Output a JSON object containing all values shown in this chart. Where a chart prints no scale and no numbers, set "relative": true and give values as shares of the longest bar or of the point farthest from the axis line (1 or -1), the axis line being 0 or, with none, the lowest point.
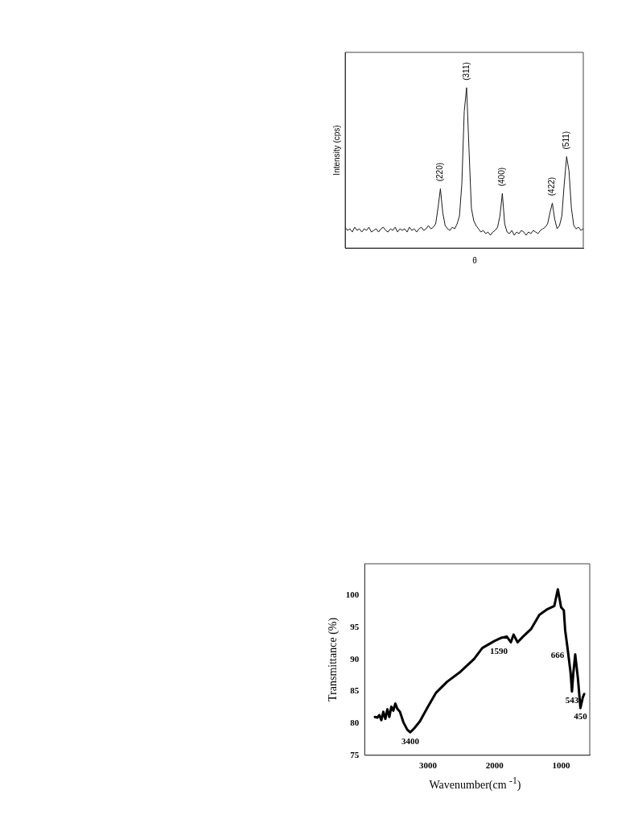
{
  "chart_data": [
    {
      "type": "line",
      "xlabel": "θ",
      "ylabel": "Intensity (cps)",
      "relative": true,
      "color": "#1a1a1a",
      "categories": [
        null,
        null,
        null,
        null,
        null,
        null,
        null,
        null,
        null,
        null,
        null,
        null,
        null,
        null,
        null,
        null,
        null,
        null,
        null,
        null,
        null,
        null,
        null,
        null,
        null,
        null,
        null,
        null,
        null,
        null,
        null,
        null,
        null,
        null,
        null,
        null,
        null,
        null,
        null,
        null,
        null,
        null,
        null,
        null,
        null,
        null,
        null,
        null,
        null,
        null,
        null,
        null,
        null,
        null,
        null,
        null,
        null,
        null,
        null,
        null,
        null,
        null,
        null,
        null,
        null,
        null,
        null,
        null,
        null,
        null,
        null,
        null,
        null,
        null,
        null,
        null,
        null,
        null,
        null,
        null,
        null,
        null,
        null,
        null,
        null,
        null,
        null,
        null,
        null,
        null,
        null,
        null,
        null,
        null,
        null,
        null,
        null,
        null,
        null,
        null,
        null
      ],
      "values": [
        0.13,
        0.11,
        0.12,
        0.1,
        0.13,
        0.11,
        0.12,
        0.1,
        0.12,
        0.11,
        0.13,
        0.1,
        0.11,
        0.12,
        0.1,
        0.12,
        0.13,
        0.11,
        0.1,
        0.12,
        0.11,
        0.13,
        0.1,
        0.12,
        0.11,
        0.12,
        0.1,
        0.13,
        0.11,
        0.12,
        0.1,
        0.12,
        0.13,
        0.11,
        0.12,
        0.14,
        0.12,
        0.13,
        0.15,
        0.25,
        0.37,
        0.22,
        0.14,
        0.12,
        0.11,
        0.13,
        0.12,
        0.15,
        0.2,
        0.4,
        0.85,
        1.0,
        0.62,
        0.25,
        0.17,
        0.14,
        0.12,
        0.1,
        0.11,
        0.09,
        0.1,
        0.08,
        0.1,
        0.11,
        0.13,
        0.2,
        0.34,
        0.15,
        0.1,
        0.09,
        0.11,
        0.08,
        0.1,
        0.09,
        0.11,
        0.1,
        0.08,
        0.1,
        0.09,
        0.11,
        0.1,
        0.09,
        0.11,
        0.12,
        0.13,
        0.15,
        0.22,
        0.28,
        0.18,
        0.12,
        0.14,
        0.2,
        0.4,
        0.57,
        0.48,
        0.25,
        0.14,
        0.12,
        0.13,
        0.11,
        0.12
      ],
      "annotations": [
        {
          "text": "(220)",
          "y": 0.37
        },
        {
          "text": "(311)",
          "y": 1.0
        },
        {
          "text": "(400)",
          "y": 0.34
        },
        {
          "text": "(422)",
          "y": 0.28
        },
        {
          "text": "(511)",
          "y": 0.57
        }
      ]
    },
    {
      "type": "line",
      "xlabel": "Wavenumber(cm $^{-1}$)",
      "ylabel": "Transmittance (%)",
      "color": "#000000",
      "xlim": [
        3950,
        570
      ],
      "xticks": [
        3000,
        2000,
        1000
      ],
      "ylim": [
        75,
        105
      ],
      "yticks": [
        75,
        80,
        85,
        90,
        95,
        100
      ],
      "x": [
        3796,
        3760,
        3730,
        3700,
        3670,
        3640,
        3610,
        3580,
        3550,
        3520,
        3490,
        3460,
        3420,
        3370,
        3310,
        3265,
        3200,
        3122,
        3000,
        2878,
        2714,
        2510,
        2306,
        2184,
        2000,
        1898,
        1816,
        1755,
        1714,
        1653,
        1571,
        1449,
        1327,
        1204,
        1102,
        1049,
        1000,
        959,
        939,
        906,
        857,
        837,
        816,
        788,
        747,
        710,
        673,
        653
      ],
      "values": [
        81.0,
        80.9,
        81.3,
        80.5,
        81.8,
        80.7,
        82.2,
        81.0,
        82.6,
        82.0,
        83.1,
        82.3,
        81.8,
        80.2,
        79.0,
        78.6,
        79.3,
        80.3,
        82.6,
        84.8,
        86.5,
        88.1,
        90.1,
        91.8,
        92.9,
        93.4,
        93.6,
        92.7,
        93.9,
        92.7,
        93.6,
        94.8,
        97.0,
        97.9,
        98.4,
        101.0,
        98.2,
        97.7,
        94.6,
        92.0,
        87.9,
        85.0,
        87.9,
        90.8,
        87.0,
        82.4,
        84.1,
        84.6
      ],
      "annotations": [
        {
          "text": "3400",
          "x": 3265,
          "y": 78.6
        },
        {
          "text": "1590",
          "x": 1755,
          "y": 92.7
        },
        {
          "text": "666",
          "x": 906,
          "y": 92.0
        },
        {
          "text": "543",
          "x": 837,
          "y": 85.0
        },
        {
          "text": "450",
          "x": 710,
          "y": 82.4
        }
      ]
    }
  ]
}
